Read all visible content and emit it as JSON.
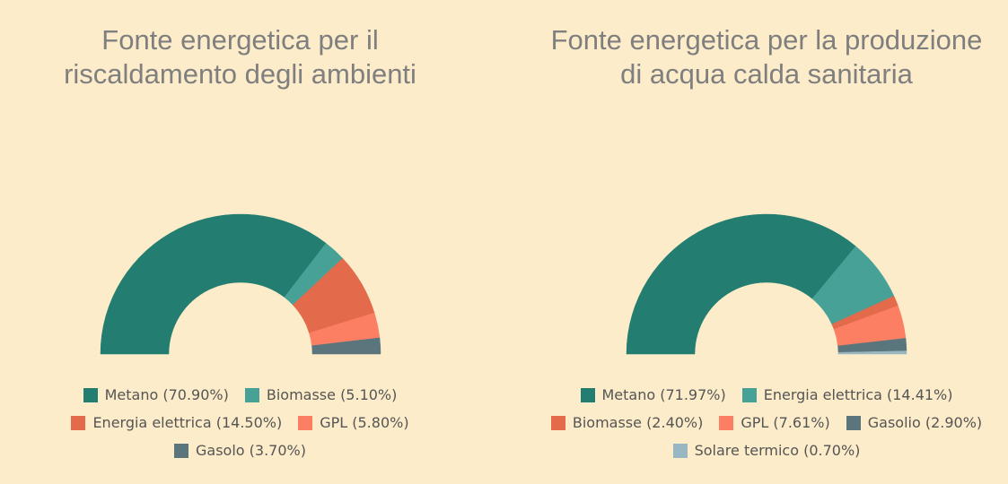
{
  "chart_data": [
    {
      "type": "pie",
      "variant": "semi-donut",
      "title": "Fonte energetica per il\nriscaldamento degli ambienti",
      "legend_position": "bottom",
      "series": [
        {
          "name": "Metano",
          "label": "Metano (70.90%)",
          "value": 70.9,
          "color": "#237d70"
        },
        {
          "name": "Biomasse",
          "label": "Biomasse (5.10%)",
          "value": 5.1,
          "color": "#48a196"
        },
        {
          "name": "Energia elettrica",
          "label": "Energia elettrica (14.50%)",
          "value": 14.5,
          "color": "#e36a4b"
        },
        {
          "name": "GPL",
          "label": "GPL (5.80%)",
          "value": 5.8,
          "color": "#fc7f64"
        },
        {
          "name": "Gasolo",
          "label": "Gasolo (3.70%)",
          "value": 3.7,
          "color": "#5a767c"
        }
      ],
      "legend_rows": [
        [
          0,
          1
        ],
        [
          2,
          3
        ],
        [
          4
        ]
      ]
    },
    {
      "type": "pie",
      "variant": "semi-donut",
      "title": "Fonte energetica per la produzione\ndi acqua calda sanitaria",
      "legend_position": "bottom",
      "series": [
        {
          "name": "Metano",
          "label": "Metano (71.97%)",
          "value": 71.97,
          "color": "#237d70"
        },
        {
          "name": "Energia elettrica",
          "label": "Energia elettrica (14.41%)",
          "value": 14.41,
          "color": "#48a196"
        },
        {
          "name": "Biomasse",
          "label": "Biomasse (2.40%)",
          "value": 2.4,
          "color": "#e36a4b"
        },
        {
          "name": "GPL",
          "label": "GPL (7.61%)",
          "value": 7.61,
          "color": "#fc7f64"
        },
        {
          "name": "Gasolio",
          "label": "Gasolio (2.90%)",
          "value": 2.9,
          "color": "#5a767c"
        },
        {
          "name": "Solare termico",
          "label": "Solare termico (0.70%)",
          "value": 0.7,
          "color": "#98b7c0"
        }
      ],
      "legend_rows": [
        [
          0,
          1
        ],
        [
          2,
          3,
          4
        ],
        [
          5
        ]
      ]
    }
  ]
}
